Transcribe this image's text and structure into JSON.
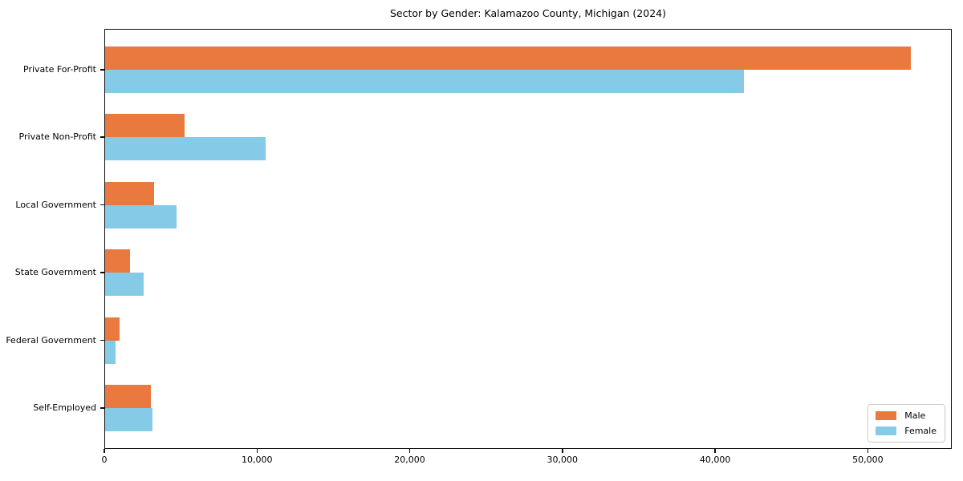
{
  "chart_data": {
    "type": "bar",
    "orientation": "horizontal",
    "title": "Sector by Gender: Kalamazoo County, Michigan (2024)",
    "categories": [
      "Private For-Profit",
      "Private Non-Profit",
      "Local Government",
      "State Government",
      "Federal Government",
      "Self-Employed"
    ],
    "series": [
      {
        "name": "Male",
        "color": "#E9793E",
        "values": [
          52800,
          5250,
          3250,
          1680,
          1000,
          3050
        ]
      },
      {
        "name": "Female",
        "color": "#85CBE8",
        "values": [
          41900,
          10560,
          4730,
          2570,
          740,
          3150
        ]
      }
    ],
    "xlim": [
      0,
      55500
    ],
    "x_ticks": [
      0,
      10000,
      20000,
      30000,
      40000,
      50000
    ],
    "x_tick_labels": [
      "0",
      "10,000",
      "20,000",
      "30,000",
      "40,000",
      "50,000"
    ],
    "grid": false,
    "background": "#ffffff",
    "legend_position": "lower right"
  }
}
